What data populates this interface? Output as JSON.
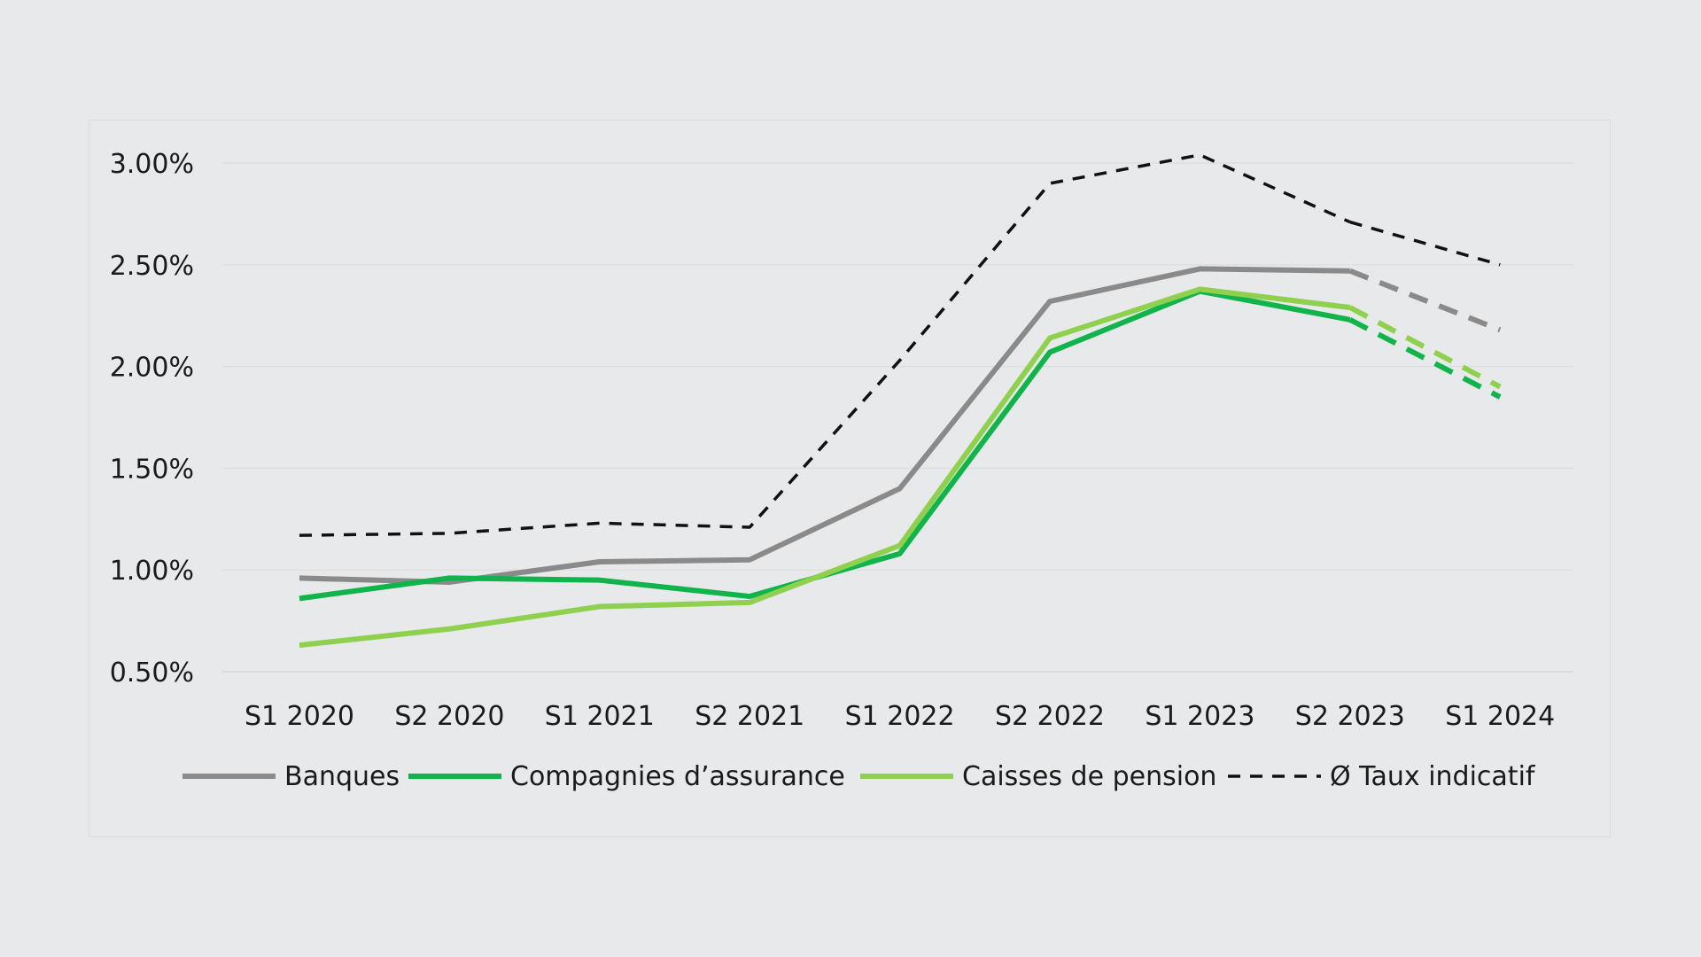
{
  "chart_data": {
    "type": "line",
    "title": "",
    "xlabel": "",
    "ylabel": "",
    "categories": [
      "S1 2020",
      "S2 2020",
      "S1 2021",
      "S2 2021",
      "S1 2022",
      "S2 2022",
      "S1 2023",
      "S2 2023",
      "S1 2024"
    ],
    "y_ticks": [
      "0.50%",
      "1.00%",
      "1.50%",
      "2.00%",
      "2.50%",
      "3.00%"
    ],
    "ylim": [
      0.5,
      3.0
    ],
    "grid": true,
    "legend_position": "bottom",
    "dashed_segment_note": "last segment of each series (S2 2023 to S1 2024) is dashed",
    "series": [
      {
        "name": "Banques",
        "color": "#8a8a8a",
        "style": "solid",
        "values": [
          0.96,
          0.94,
          1.04,
          1.05,
          1.4,
          2.32,
          2.48,
          2.47,
          2.18
        ]
      },
      {
        "name": "Compagnies d’assurance",
        "color": "#10b44a",
        "style": "solid",
        "values": [
          0.86,
          0.96,
          0.95,
          0.87,
          1.08,
          2.07,
          2.37,
          2.23,
          1.85
        ]
      },
      {
        "name": "Caisses de pension",
        "color": "#8fd14f",
        "style": "solid",
        "values": [
          0.63,
          0.71,
          0.82,
          0.84,
          1.12,
          2.14,
          2.38,
          2.29,
          1.9
        ]
      },
      {
        "name": "Ø Taux indicatif",
        "color": "#111111",
        "style": "dashed",
        "values": [
          1.17,
          1.18,
          1.23,
          1.21,
          2.03,
          2.9,
          3.04,
          2.71,
          2.5
        ]
      }
    ]
  }
}
